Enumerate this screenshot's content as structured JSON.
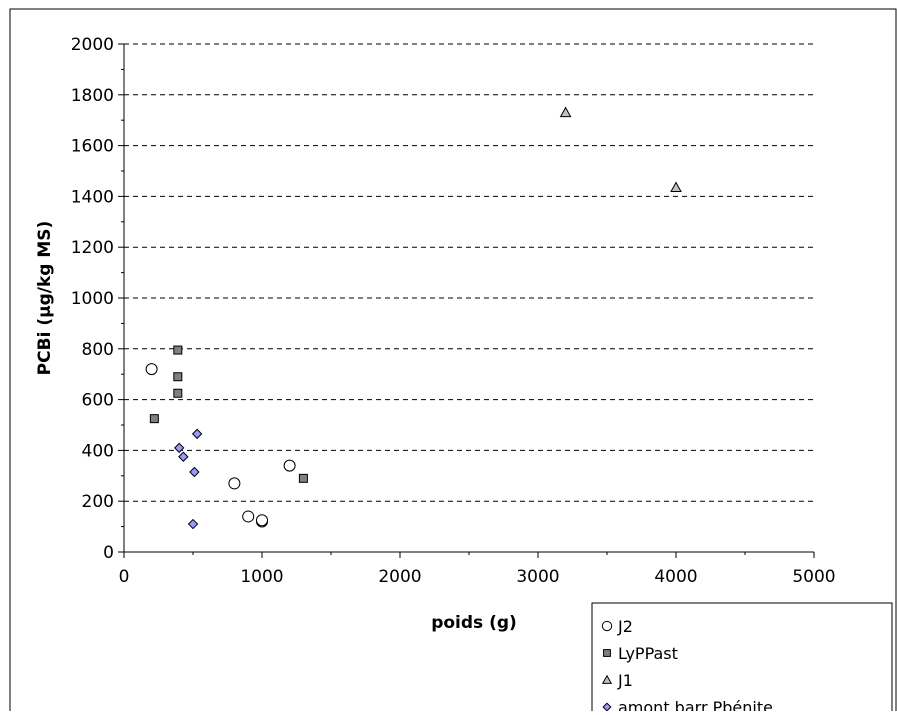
{
  "chart_data": {
    "type": "scatter",
    "title": "",
    "xlabel": "poids (g)",
    "ylabel": "PCBi (µg/kg MS)",
    "xlim": [
      0,
      5000
    ],
    "ylim": [
      0,
      2000
    ],
    "x_ticks": [
      0,
      1000,
      2000,
      3000,
      4000,
      5000
    ],
    "y_ticks": [
      0,
      200,
      400,
      600,
      800,
      1000,
      1200,
      1400,
      1600,
      1800,
      2000
    ],
    "grid": "horizontal-dashed",
    "legend_position": "bottom-right",
    "series": [
      {
        "name": "J2",
        "marker": "circle",
        "color": "#ffffff",
        "x": [
          200,
          800,
          900,
          1000,
          1000,
          1200
        ],
        "y": [
          720,
          270,
          140,
          120,
          125,
          340
        ]
      },
      {
        "name": "LyPPast",
        "marker": "square",
        "color": "#808080",
        "x": [
          220,
          390,
          390,
          390,
          1300
        ],
        "y": [
          525,
          795,
          690,
          625,
          290
        ]
      },
      {
        "name": "J1",
        "marker": "triangle",
        "color": "#c0c0c0",
        "x": [
          3200,
          4000
        ],
        "y": [
          1730,
          1435
        ]
      },
      {
        "name": "amont barr Pbénite",
        "marker": "diamond",
        "color": "#9999ff",
        "x": [
          400,
          430,
          500,
          510,
          530
        ],
        "y": [
          410,
          375,
          110,
          315,
          465
        ]
      }
    ]
  }
}
